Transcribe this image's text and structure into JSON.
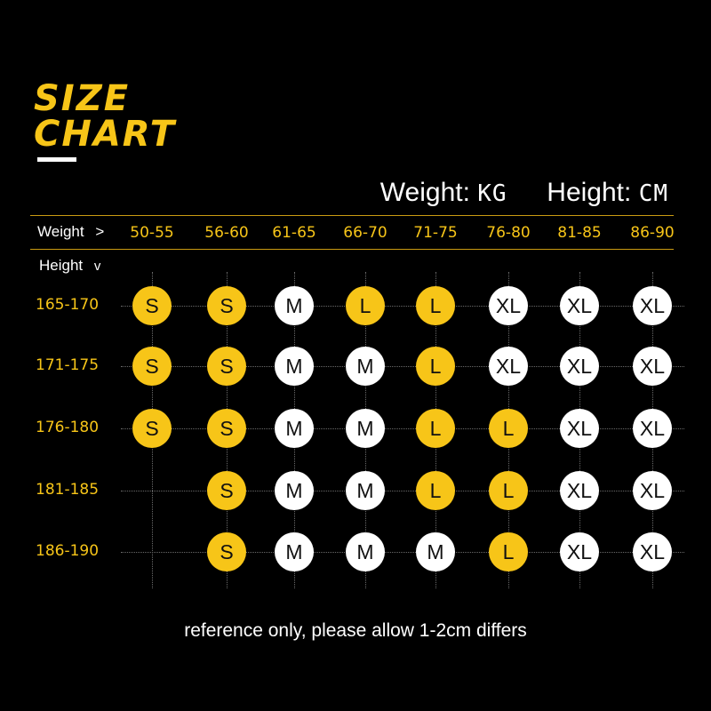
{
  "header": {
    "title_line1": "SIZE",
    "title_line2": "CHART",
    "weight_label": "Weight:",
    "weight_unit": "KG",
    "height_label": "Height:",
    "height_unit": "CM"
  },
  "table": {
    "weight_header": "Weight",
    "weight_arrow": ">",
    "height_header": "Height",
    "height_arrow": "v",
    "weights": [
      "50-55",
      "56-60",
      "61-65",
      "66-70",
      "71-75",
      "76-80",
      "81-85",
      "86-90"
    ],
    "heights": [
      "165-170",
      "171-175",
      "176-180",
      "181-185",
      "186-190"
    ],
    "sizes": [
      [
        "S",
        "S",
        "M",
        "L",
        "L",
        "XL",
        "XL",
        "XL"
      ],
      [
        "S",
        "S",
        "M",
        "M",
        "L",
        "XL",
        "XL",
        "XL"
      ],
      [
        "S",
        "S",
        "M",
        "M",
        "L",
        "L",
        "XL",
        "XL"
      ],
      [
        "",
        "S",
        "M",
        "M",
        "L",
        "L",
        "XL",
        "XL"
      ],
      [
        "",
        "S",
        "M",
        "M",
        "M",
        "L",
        "XL",
        "XL"
      ]
    ],
    "colors": [
      [
        "gold",
        "gold",
        "white",
        "gold",
        "gold",
        "white",
        "white",
        "white"
      ],
      [
        "gold",
        "gold",
        "white",
        "white",
        "gold",
        "white",
        "white",
        "white"
      ],
      [
        "gold",
        "gold",
        "white",
        "white",
        "gold",
        "gold",
        "white",
        "white"
      ],
      [
        "",
        "gold",
        "white",
        "white",
        "gold",
        "gold",
        "white",
        "white"
      ],
      [
        "",
        "gold",
        "white",
        "white",
        "white",
        "gold",
        "white",
        "white"
      ]
    ]
  },
  "palette": {
    "gold": "#f7c518",
    "white": "#ffffff",
    "background": "#000000"
  },
  "note": "reference only, please allow 1-2cm differs"
}
